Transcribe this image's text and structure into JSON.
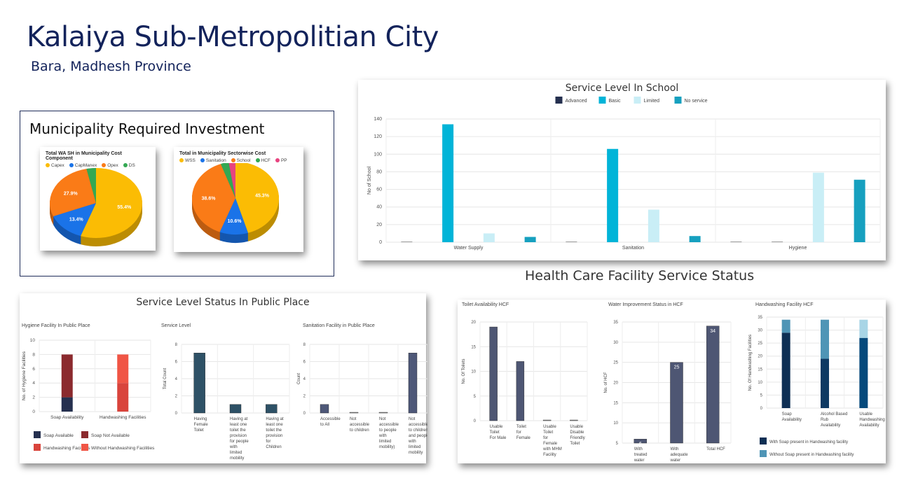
{
  "header": {
    "title": "Kalaiya Sub-Metropolitian City",
    "subtitle": "Bara, Madhesh Province"
  },
  "investment": {
    "title": "Municipality Required Investment"
  },
  "hcf_heading": "Health Care Facility Service Status",
  "public_panel_title": "Service Level Status In Public Place",
  "chart_data": [
    {
      "id": "pie1",
      "type": "pie",
      "title": "Total WA SH in Municipality Cost Component",
      "labels": [
        "Capex",
        "CapManex",
        "Opex",
        "DS"
      ],
      "values": [
        55.4,
        13.4,
        27.9,
        3.3
      ],
      "data_labels": [
        "55.4%",
        "13.4%",
        "27.9%",
        ""
      ],
      "colors": [
        "#fbbc04",
        "#1a73e8",
        "#fa7b17",
        "#34a853"
      ]
    },
    {
      "id": "pie2",
      "type": "pie",
      "title": "Total in Municipality Sectorwise Cost",
      "labels": [
        "WSS",
        "Sanitation",
        "School",
        "HCF",
        "PP"
      ],
      "values": [
        45.3,
        10.6,
        38.6,
        3.0,
        2.5
      ],
      "data_labels": [
        "45.3%",
        "10.6%",
        "38.6%",
        "",
        ""
      ],
      "colors": [
        "#fbbc04",
        "#1a73e8",
        "#fa7b17",
        "#34a853",
        "#e8437f"
      ]
    },
    {
      "id": "school",
      "type": "bar",
      "title": "Service Level In School",
      "ylabel": "No of School",
      "ylim": [
        0,
        140
      ],
      "yticks": [
        0,
        20,
        40,
        60,
        80,
        100,
        120,
        140
      ],
      "categories": [
        "Water Supply",
        "Sanitation",
        "Hygiene"
      ],
      "series": [
        {
          "name": "Advanced",
          "values": [
            0,
            0,
            0
          ],
          "color": "#25304f"
        },
        {
          "name": "Basic",
          "values": [
            134,
            106,
            0
          ],
          "color": "#00b4d8"
        },
        {
          "name": "Limited",
          "values": [
            10,
            37,
            79
          ],
          "color": "#c9eef6"
        },
        {
          "name": "No service",
          "values": [
            6,
            7,
            71
          ],
          "color": "#16a0bf"
        }
      ],
      "legend": "top"
    },
    {
      "id": "hyg",
      "type": "bar",
      "stacked": true,
      "title": "Hygiene Facility In Public Place",
      "ylabel": "No. of Hygiene Facilities",
      "ylim": [
        0,
        10
      ],
      "yticks": [
        0,
        2,
        4,
        6,
        8,
        10
      ],
      "categories": [
        "Soap Availability",
        "Handwashing Facilities"
      ],
      "series": [
        {
          "name": "Soap Available",
          "values": [
            2,
            0
          ],
          "color": "#25304f"
        },
        {
          "name": "Soap Not Available",
          "values": [
            6,
            0
          ],
          "color": "#8b2a2e"
        },
        {
          "name": "Handwashing Facilities",
          "values": [
            0,
            4
          ],
          "color": "#d9443c"
        },
        {
          "name": "Without Handwashing Facilities",
          "values": [
            0,
            4
          ],
          "color": "#f05545"
        }
      ],
      "legend": "bottom"
    },
    {
      "id": "svc",
      "type": "bar",
      "title": "Service Level",
      "ylabel": "Total Count",
      "ylim": [
        0,
        8
      ],
      "yticks": [
        0,
        2,
        4,
        6,
        8
      ],
      "categories": [
        "Having Female Toilet",
        "Having at least one toilet the provision for people with limited mobility",
        "Having at least one toilet the provision for Children"
      ],
      "series": [
        {
          "name": "Count",
          "values": [
            7,
            1,
            1
          ],
          "color": "#2e5166"
        }
      ]
    },
    {
      "id": "san",
      "type": "bar",
      "title": "Sanitation Facility in Public Place",
      "ylabel": "Count",
      "ylim": [
        0,
        8
      ],
      "yticks": [
        0,
        2,
        4,
        6,
        8
      ],
      "categories": [
        "Accessible to All",
        "Not accessible to children",
        "Not accessible to people with limited mobility)",
        "Not accessible to children and people with limited mobility"
      ],
      "series": [
        {
          "name": "Count",
          "values": [
            1,
            0,
            0,
            7
          ],
          "color": "#4e5878"
        }
      ]
    },
    {
      "id": "toilet",
      "type": "bar",
      "title": "Toilet Availability HCF",
      "ylabel": "No. Of Toilets",
      "ylim": [
        0,
        20
      ],
      "yticks": [
        0,
        5,
        10,
        15,
        20
      ],
      "categories": [
        "Usable Toilet For Male",
        "Toilet for Female",
        "Usable Toilet for Female with MHM Facility",
        "Usable Disable Friendly Toilet"
      ],
      "series": [
        {
          "name": "Count",
          "values": [
            19,
            12,
            0,
            0
          ],
          "color": "#4e5673"
        }
      ]
    },
    {
      "id": "water",
      "type": "bar",
      "title": "Water Improvement Status in HCF",
      "ylabel": "No. of HCF",
      "ylim": [
        5,
        35
      ],
      "yticks": [
        5,
        10,
        15,
        20,
        25,
        30,
        35
      ],
      "categories": [
        "With treated water",
        "With adequate water",
        "Total HCF"
      ],
      "series": [
        {
          "name": "Count",
          "values": [
            6,
            25,
            34
          ],
          "color": "#4e5673"
        }
      ],
      "data_labels": [
        "6",
        "25",
        "34"
      ]
    },
    {
      "id": "hand",
      "type": "bar",
      "stacked": true,
      "title": "Handwashing Facility HCF",
      "ylabel": "No. Of Handwashing Facilities",
      "ylim": [
        0,
        35
      ],
      "yticks": [
        0,
        5,
        10,
        15,
        20,
        25,
        30,
        35
      ],
      "categories": [
        "Soap Availability",
        "Alcohol Based Rub Availability",
        "Usable Handwashing Availability"
      ],
      "series": [
        {
          "name": "With Soap present in Handwashing facility",
          "values": [
            29,
            19,
            27
          ],
          "color": "#0e2f54",
          "colors": [
            "#0e2f54",
            "#0e3a63",
            "#064a7c"
          ]
        },
        {
          "name": "Without Soap present in Handwashing facility",
          "values": [
            5,
            15,
            7
          ],
          "color": "#4f95b6",
          "colors": [
            "#4f95b6",
            "#4f95b6",
            "#a8d5e6"
          ]
        }
      ],
      "legend": "bottom"
    }
  ]
}
